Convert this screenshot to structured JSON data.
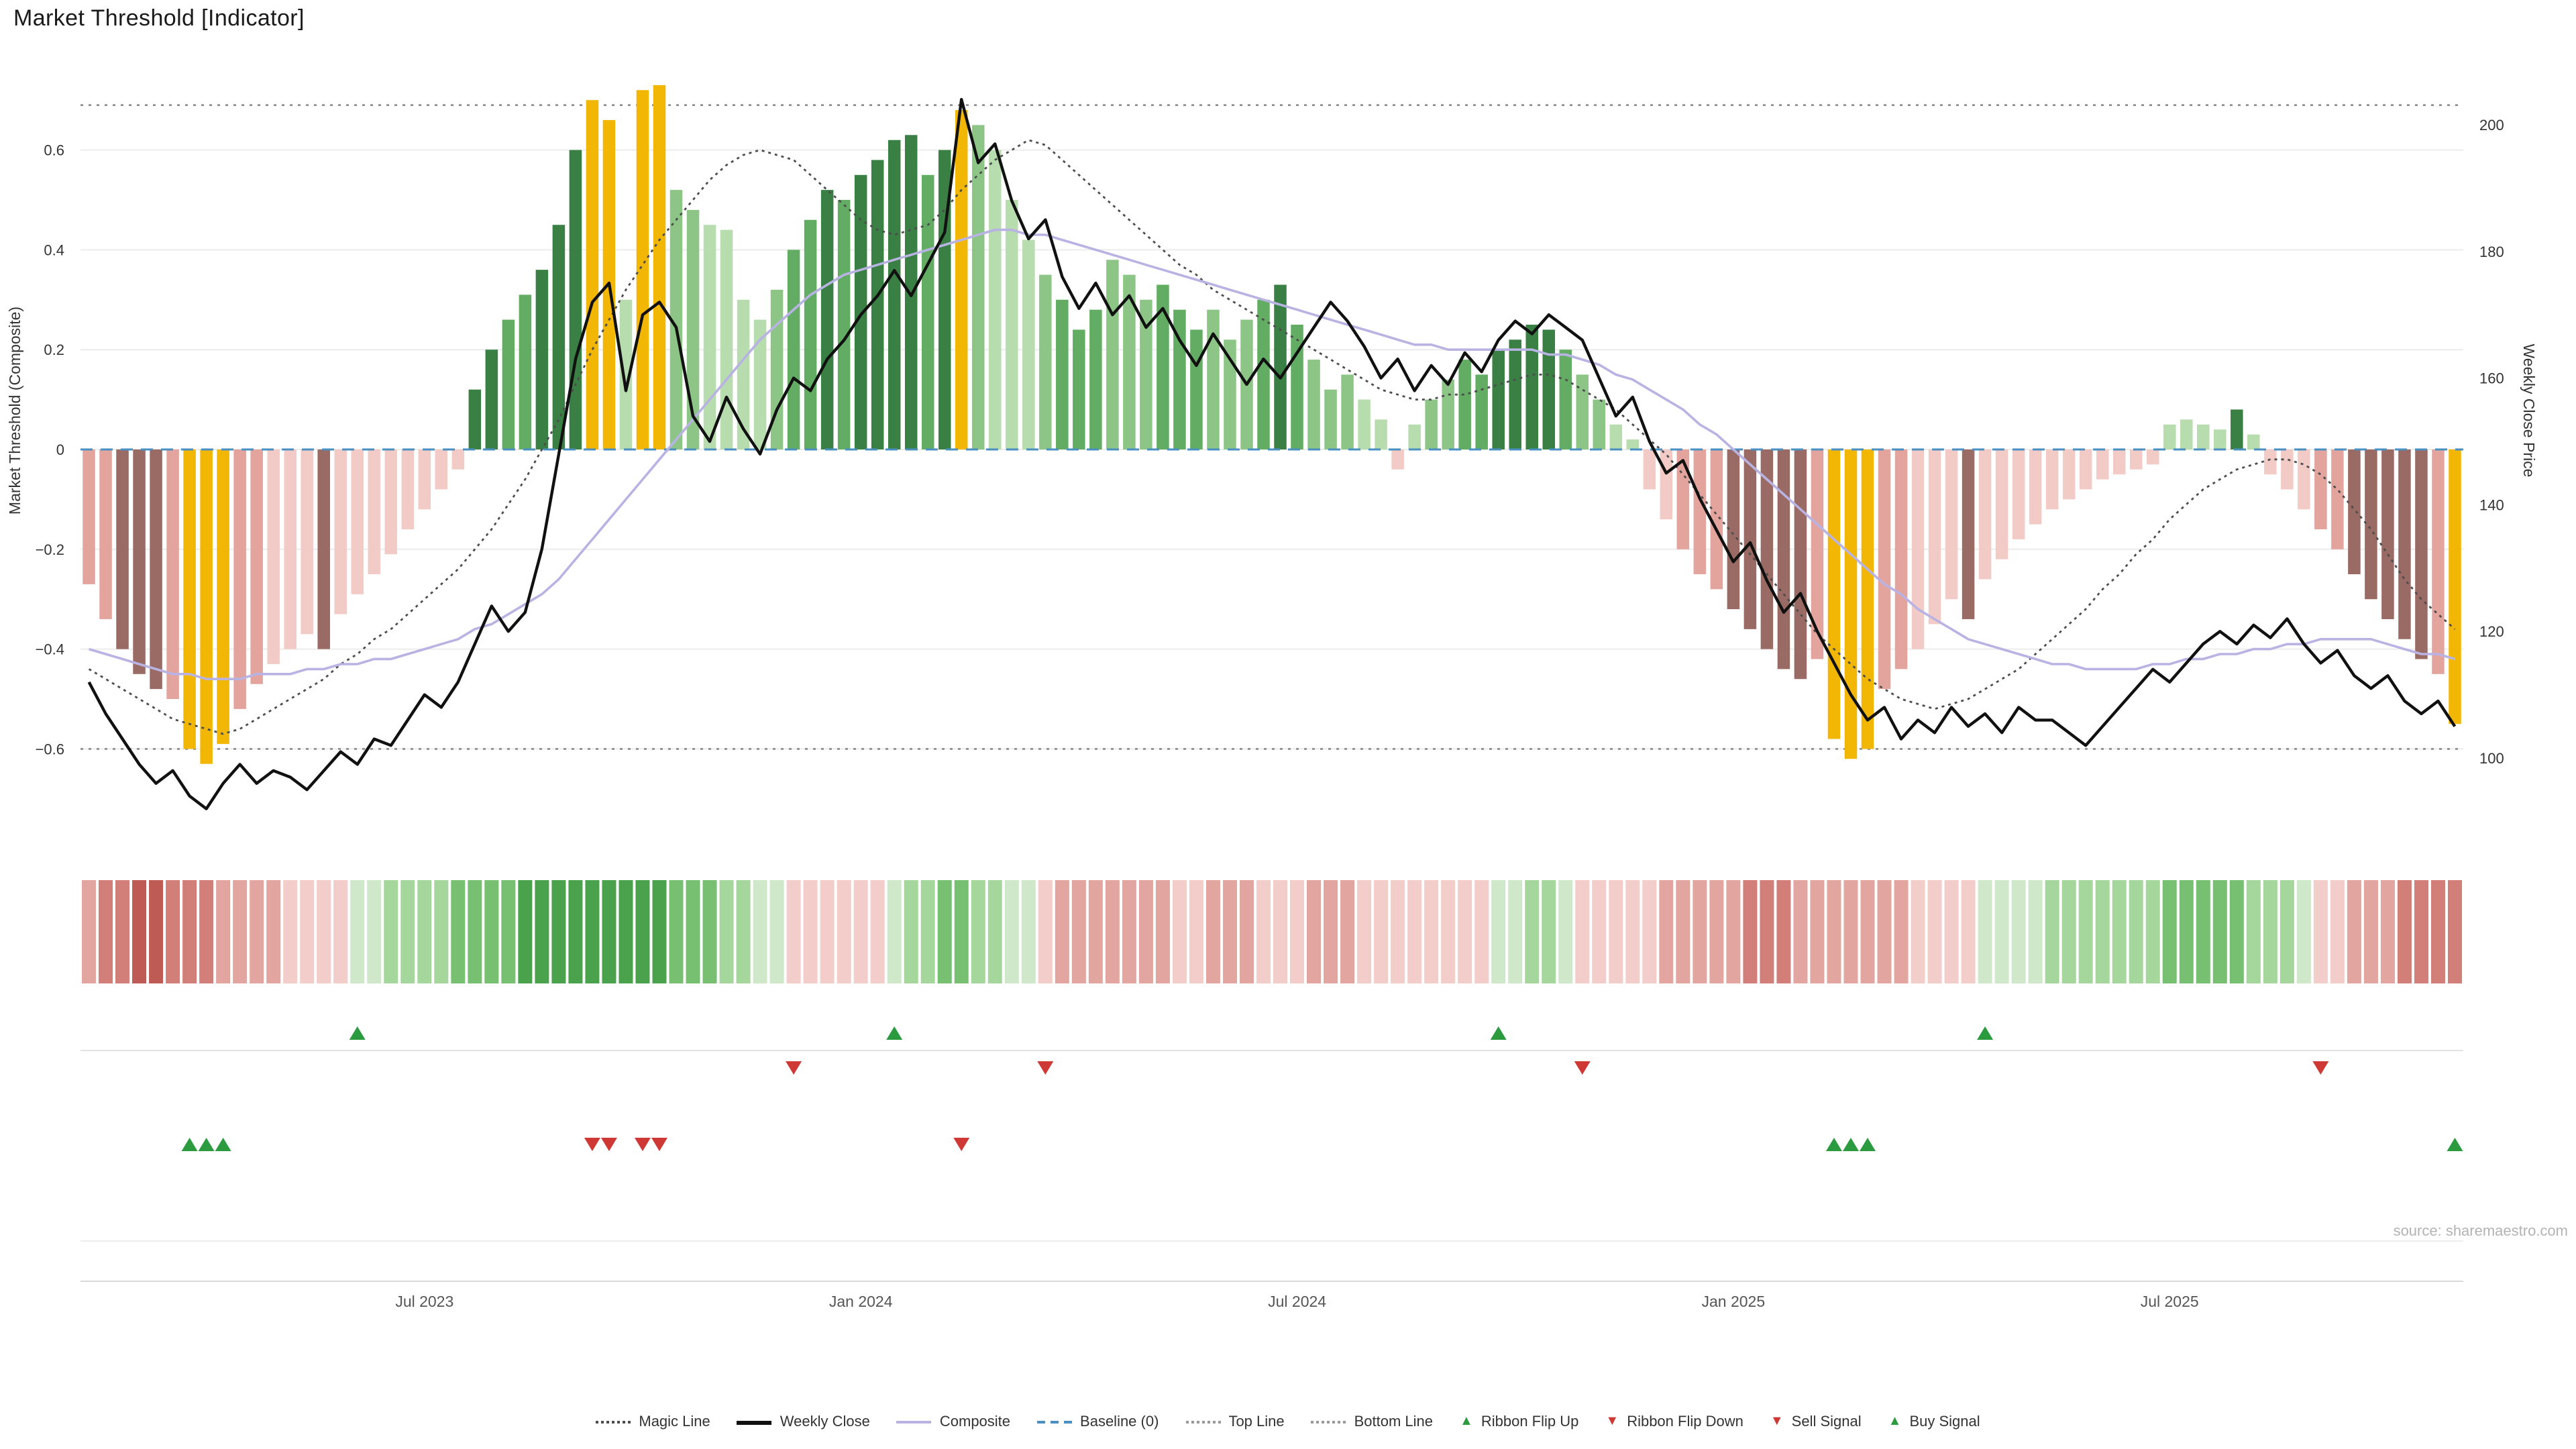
{
  "header": {
    "title": "Market Threshold [Indicator]"
  },
  "source_text": "source: sharemaestro.com",
  "icons": {
    "triangle_up": "▲",
    "triangle_down": "▼"
  },
  "colors": {
    "accent_gold": "#f2b705",
    "weekly_close": "#111111",
    "composite": "#b9b3e3",
    "magic": "#4d4d4d",
    "baseline": "#4a8fc1",
    "buy": "#2c9b3f",
    "sell": "#cf3935",
    "bar": {
      "g1": "#b7dcae",
      "g2": "#8cc586",
      "g3": "#63ac63",
      "g4": "#3a8044",
      "p1": "#f2cbc6",
      "p2": "#e3a49e",
      "m": "#9a6b64",
      "gold": "#f2b705"
    },
    "ribbon": {
      "-1": "#f2cdc9",
      "-2": "#e3a59f",
      "-3": "#d17f78",
      "-4": "#bf5b55",
      "1": "#cfe8c9",
      "2": "#a5d79d",
      "3": "#77bf71",
      "4": "#4aa24d"
    }
  },
  "axes": {
    "left_title": "Market Threshold (Composite)",
    "right_title": "Weekly Close Price",
    "left_ticks": [
      {
        "v": 0.6,
        "label": "0.6"
      },
      {
        "v": 0.4,
        "label": "0.4"
      },
      {
        "v": 0.2,
        "label": "0.2"
      },
      {
        "v": 0,
        "label": "0"
      },
      {
        "v": -0.2,
        "label": "−0.2"
      },
      {
        "v": -0.4,
        "label": "−0.4"
      },
      {
        "v": -0.6,
        "label": "−0.6"
      }
    ],
    "right_ticks": [
      {
        "v": 200,
        "label": "200"
      },
      {
        "v": 180,
        "label": "180"
      },
      {
        "v": 160,
        "label": "160"
      },
      {
        "v": 140,
        "label": "140"
      },
      {
        "v": 120,
        "label": "120"
      },
      {
        "v": 100,
        "label": "100"
      }
    ],
    "x_ticks": [
      {
        "label": "Jul 2023",
        "index": 20
      },
      {
        "label": "Jan 2024",
        "index": 46
      },
      {
        "label": "Jul 2024",
        "index": 72
      },
      {
        "label": "Jan 2025",
        "index": 98
      },
      {
        "label": "Jul 2025",
        "index": 124
      }
    ]
  },
  "legend": {
    "items": [
      {
        "label": "Magic Line",
        "swatch": "magic"
      },
      {
        "label": "Weekly Close",
        "swatch": "close"
      },
      {
        "label": "Composite",
        "swatch": "comp"
      },
      {
        "label": "Baseline (0)",
        "swatch": "base"
      },
      {
        "label": "Top Line",
        "swatch": "top"
      },
      {
        "label": "Bottom Line",
        "swatch": "bottom"
      },
      {
        "label": "Ribbon Flip Up",
        "swatch": "tri-up"
      },
      {
        "label": "Ribbon Flip Down",
        "swatch": "tri-down"
      },
      {
        "label": "Sell Signal",
        "swatch": "tri-down"
      },
      {
        "label": "Buy Signal",
        "swatch": "tri-up"
      }
    ]
  },
  "chart_data": {
    "type": "combo",
    "subtype": "weekly threshold bars (left axis) + price/indicator lines, color ribbon and signal markers",
    "n_points": 142,
    "x_unit": "week",
    "x_tick_labels": [
      "Jul 2023",
      "Jan 2024",
      "Jul 2024",
      "Jan 2025",
      "Jul 2025"
    ],
    "left_axis": {
      "label": "Market Threshold (Composite)",
      "range": [
        -0.7,
        0.73
      ],
      "ticks": [
        0.6,
        0.4,
        0.2,
        0,
        -0.2,
        -0.4,
        -0.6
      ]
    },
    "right_axis": {
      "label": "Weekly Close Price",
      "range": [
        95,
        206
      ],
      "ticks": [
        200,
        180,
        160,
        140,
        120,
        100
      ]
    },
    "reference_lines": {
      "top_line": 0.69,
      "baseline": 0,
      "bottom_line": -0.6
    },
    "series": [
      {
        "name": "Threshold Bars",
        "axis": "left",
        "type": "bar",
        "values": [
          -0.27,
          -0.34,
          -0.4,
          -0.45,
          -0.48,
          -0.5,
          -0.6,
          -0.63,
          -0.59,
          -0.52,
          -0.47,
          -0.43,
          -0.4,
          -0.37,
          -0.4,
          -0.33,
          -0.29,
          -0.25,
          -0.21,
          -0.16,
          -0.12,
          -0.08,
          -0.04,
          0.12,
          0.2,
          0.26,
          0.31,
          0.36,
          0.45,
          0.6,
          0.7,
          0.66,
          0.3,
          0.72,
          0.73,
          0.52,
          0.48,
          0.45,
          0.44,
          0.3,
          0.26,
          0.32,
          0.4,
          0.46,
          0.52,
          0.5,
          0.55,
          0.58,
          0.62,
          0.63,
          0.55,
          0.6,
          0.68,
          0.65,
          0.6,
          0.5,
          0.42,
          0.35,
          0.3,
          0.24,
          0.28,
          0.38,
          0.35,
          0.3,
          0.33,
          0.28,
          0.24,
          0.28,
          0.22,
          0.26,
          0.3,
          0.33,
          0.25,
          0.18,
          0.12,
          0.15,
          0.1,
          0.06,
          -0.04,
          0.05,
          0.1,
          0.14,
          0.18,
          0.15,
          0.2,
          0.22,
          0.25,
          0.24,
          0.2,
          0.15,
          0.1,
          0.05,
          0.02,
          -0.08,
          -0.14,
          -0.2,
          -0.25,
          -0.28,
          -0.32,
          -0.36,
          -0.4,
          -0.44,
          -0.46,
          -0.42,
          -0.58,
          -0.62,
          -0.6,
          -0.48,
          -0.44,
          -0.4,
          -0.35,
          -0.3,
          -0.34,
          -0.26,
          -0.22,
          -0.18,
          -0.15,
          -0.12,
          -0.1,
          -0.08,
          -0.06,
          -0.05,
          -0.04,
          -0.03,
          0.05,
          0.06,
          0.05,
          0.04,
          0.08,
          0.03,
          -0.05,
          -0.08,
          -0.12,
          -0.16,
          -0.2,
          -0.25,
          -0.3,
          -0.34,
          -0.38,
          -0.42,
          -0.45,
          -0.55
        ],
        "colors": [
          "p2",
          "p2",
          "m",
          "m",
          "m",
          "p2",
          "gold",
          "gold",
          "gold",
          "p2",
          "p2",
          "p1",
          "p1",
          "p1",
          "m",
          "p1",
          "p1",
          "p1",
          "p1",
          "p1",
          "p1",
          "p1",
          "p1",
          "g4",
          "g4",
          "g3",
          "g3",
          "g4",
          "g4",
          "g4",
          "gold",
          "gold",
          "g1",
          "gold",
          "gold",
          "g2",
          "g2",
          "g1",
          "g1",
          "g1",
          "g1",
          "g2",
          "g3",
          "g3",
          "g4",
          "g3",
          "g4",
          "g4",
          "g4",
          "g4",
          "g3",
          "g4",
          "gold",
          "g2",
          "g1",
          "g1",
          "g1",
          "g2",
          "g3",
          "g3",
          "g3",
          "g2",
          "g2",
          "g2",
          "g3",
          "g3",
          "g3",
          "g2",
          "g2",
          "g2",
          "g3",
          "g4",
          "g3",
          "g2",
          "g2",
          "g2",
          "g1",
          "g1",
          "p1",
          "g1",
          "g2",
          "g2",
          "g3",
          "g3",
          "g4",
          "g4",
          "g4",
          "g4",
          "g3",
          "g2",
          "g2",
          "g1",
          "g1",
          "p1",
          "p1",
          "p2",
          "p2",
          "p2",
          "m",
          "m",
          "m",
          "m",
          "m",
          "p2",
          "gold",
          "gold",
          "gold",
          "p2",
          "p2",
          "p1",
          "p1",
          "p1",
          "m",
          "p1",
          "p1",
          "p1",
          "p1",
          "p1",
          "p1",
          "p1",
          "p1",
          "p1",
          "p1",
          "p1",
          "g1",
          "g1",
          "g1",
          "g1",
          "g4",
          "g1",
          "p1",
          "p1",
          "p1",
          "p2",
          "p2",
          "m",
          "m",
          "m",
          "m",
          "m",
          "p2",
          "gold"
        ]
      },
      {
        "name": "Weekly Close",
        "axis": "right",
        "type": "line",
        "values": [
          112,
          107,
          103,
          99,
          96,
          98,
          94,
          92,
          96,
          99,
          96,
          98,
          97,
          95,
          98,
          101,
          99,
          103,
          102,
          106,
          110,
          108,
          112,
          118,
          124,
          120,
          123,
          133,
          148,
          163,
          172,
          175,
          158,
          170,
          172,
          168,
          154,
          150,
          157,
          152,
          148,
          155,
          160,
          158,
          163,
          166,
          170,
          173,
          177,
          173,
          178,
          183,
          204,
          194,
          197,
          188,
          182,
          185,
          176,
          171,
          175,
          170,
          173,
          168,
          171,
          166,
          162,
          167,
          163,
          159,
          163,
          160,
          164,
          168,
          172,
          169,
          165,
          160,
          163,
          158,
          162,
          159,
          164,
          161,
          166,
          169,
          167,
          170,
          168,
          166,
          160,
          154,
          157,
          150,
          145,
          147,
          141,
          136,
          131,
          134,
          128,
          123,
          126,
          120,
          115,
          110,
          106,
          108,
          103,
          106,
          104,
          108,
          105,
          107,
          104,
          108,
          106,
          106,
          104,
          102,
          105,
          108,
          111,
          114,
          112,
          115,
          118,
          120,
          118,
          121,
          119,
          122,
          118,
          115,
          117,
          113,
          111,
          113,
          109,
          107,
          109,
          105
        ]
      },
      {
        "name": "Composite",
        "axis": "left",
        "type": "line",
        "values": [
          -0.4,
          -0.41,
          -0.42,
          -0.43,
          -0.44,
          -0.45,
          -0.45,
          -0.46,
          -0.46,
          -0.46,
          -0.45,
          -0.45,
          -0.45,
          -0.44,
          -0.44,
          -0.43,
          -0.43,
          -0.42,
          -0.42,
          -0.41,
          -0.4,
          -0.39,
          -0.38,
          -0.36,
          -0.35,
          -0.33,
          -0.31,
          -0.29,
          -0.26,
          -0.22,
          -0.18,
          -0.14,
          -0.1,
          -0.06,
          -0.02,
          0.02,
          0.06,
          0.1,
          0.14,
          0.18,
          0.22,
          0.25,
          0.28,
          0.31,
          0.33,
          0.35,
          0.36,
          0.37,
          0.38,
          0.39,
          0.4,
          0.41,
          0.42,
          0.43,
          0.44,
          0.44,
          0.43,
          0.43,
          0.42,
          0.41,
          0.4,
          0.39,
          0.38,
          0.37,
          0.36,
          0.35,
          0.34,
          0.33,
          0.32,
          0.31,
          0.3,
          0.29,
          0.28,
          0.27,
          0.26,
          0.25,
          0.24,
          0.23,
          0.22,
          0.21,
          0.21,
          0.2,
          0.2,
          0.2,
          0.2,
          0.2,
          0.2,
          0.19,
          0.19,
          0.18,
          0.17,
          0.15,
          0.14,
          0.12,
          0.1,
          0.08,
          0.05,
          0.03,
          0.0,
          -0.03,
          -0.06,
          -0.09,
          -0.12,
          -0.15,
          -0.18,
          -0.21,
          -0.24,
          -0.27,
          -0.29,
          -0.32,
          -0.34,
          -0.36,
          -0.38,
          -0.39,
          -0.4,
          -0.41,
          -0.42,
          -0.43,
          -0.43,
          -0.44,
          -0.44,
          -0.44,
          -0.44,
          -0.43,
          -0.43,
          -0.42,
          -0.42,
          -0.41,
          -0.41,
          -0.4,
          -0.4,
          -0.39,
          -0.39,
          -0.38,
          -0.38,
          -0.38,
          -0.38,
          -0.39,
          -0.4,
          -0.41,
          -0.41,
          -0.42
        ]
      },
      {
        "name": "Magic Line",
        "axis": "left",
        "type": "line",
        "values": [
          -0.44,
          -0.46,
          -0.48,
          -0.5,
          -0.52,
          -0.54,
          -0.55,
          -0.56,
          -0.57,
          -0.56,
          -0.54,
          -0.52,
          -0.5,
          -0.48,
          -0.46,
          -0.43,
          -0.41,
          -0.38,
          -0.36,
          -0.33,
          -0.3,
          -0.27,
          -0.24,
          -0.2,
          -0.16,
          -0.11,
          -0.06,
          0.0,
          0.06,
          0.13,
          0.2,
          0.26,
          0.32,
          0.37,
          0.42,
          0.46,
          0.5,
          0.54,
          0.57,
          0.59,
          0.6,
          0.59,
          0.58,
          0.55,
          0.52,
          0.49,
          0.46,
          0.44,
          0.43,
          0.44,
          0.45,
          0.48,
          0.52,
          0.55,
          0.58,
          0.6,
          0.62,
          0.61,
          0.58,
          0.55,
          0.52,
          0.49,
          0.46,
          0.43,
          0.4,
          0.37,
          0.35,
          0.32,
          0.3,
          0.28,
          0.26,
          0.24,
          0.22,
          0.2,
          0.18,
          0.16,
          0.14,
          0.12,
          0.11,
          0.1,
          0.1,
          0.11,
          0.11,
          0.12,
          0.13,
          0.14,
          0.15,
          0.15,
          0.14,
          0.12,
          0.1,
          0.08,
          0.05,
          0.02,
          -0.01,
          -0.05,
          -0.09,
          -0.13,
          -0.17,
          -0.21,
          -0.25,
          -0.29,
          -0.33,
          -0.37,
          -0.4,
          -0.43,
          -0.46,
          -0.48,
          -0.5,
          -0.51,
          -0.52,
          -0.51,
          -0.5,
          -0.48,
          -0.46,
          -0.44,
          -0.41,
          -0.38,
          -0.35,
          -0.32,
          -0.28,
          -0.25,
          -0.21,
          -0.18,
          -0.14,
          -0.11,
          -0.08,
          -0.06,
          -0.04,
          -0.03,
          -0.02,
          -0.02,
          -0.03,
          -0.05,
          -0.08,
          -0.12,
          -0.16,
          -0.21,
          -0.26,
          -0.3,
          -0.33,
          -0.36
        ]
      }
    ],
    "ribbon": [
      -2,
      -3,
      -3,
      -4,
      -4,
      -3,
      -3,
      -3,
      -2,
      -2,
      -2,
      -2,
      -1,
      -1,
      -1,
      -1,
      1,
      1,
      2,
      2,
      2,
      2,
      3,
      3,
      3,
      3,
      4,
      4,
      4,
      4,
      4,
      4,
      4,
      4,
      4,
      3,
      3,
      3,
      2,
      2,
      1,
      1,
      -1,
      -1,
      -1,
      -1,
      -1,
      -1,
      1,
      2,
      2,
      3,
      3,
      2,
      2,
      1,
      1,
      -1,
      -2,
      -2,
      -2,
      -2,
      -2,
      -2,
      -2,
      -1,
      -1,
      -2,
      -2,
      -2,
      -1,
      -1,
      -1,
      -2,
      -2,
      -2,
      -1,
      -1,
      -1,
      -1,
      -1,
      -1,
      -1,
      -1,
      1,
      1,
      2,
      2,
      1,
      -1,
      -1,
      -1,
      -1,
      -1,
      -2,
      -2,
      -2,
      -2,
      -2,
      -3,
      -3,
      -3,
      -2,
      -2,
      -2,
      -2,
      -2,
      -2,
      -2,
      -1,
      -1,
      -1,
      -1,
      1,
      1,
      1,
      1,
      2,
      2,
      2,
      2,
      2,
      2,
      2,
      3,
      3,
      3,
      3,
      3,
      2,
      2,
      2,
      1,
      -1,
      -1,
      -2,
      -2,
      -2,
      -3,
      -3,
      -3,
      -3
    ],
    "signals": {
      "ribbon_flip_up": [
        16,
        48,
        84,
        113
      ],
      "ribbon_flip_down": [
        42,
        57,
        89,
        133
      ],
      "sell": [
        30,
        31,
        33,
        34,
        52
      ],
      "buy": [
        6,
        7,
        8,
        104,
        105,
        106,
        141
      ]
    },
    "legend_position": "bottom center",
    "grid": "horizontal light gridlines at left-axis ticks"
  }
}
